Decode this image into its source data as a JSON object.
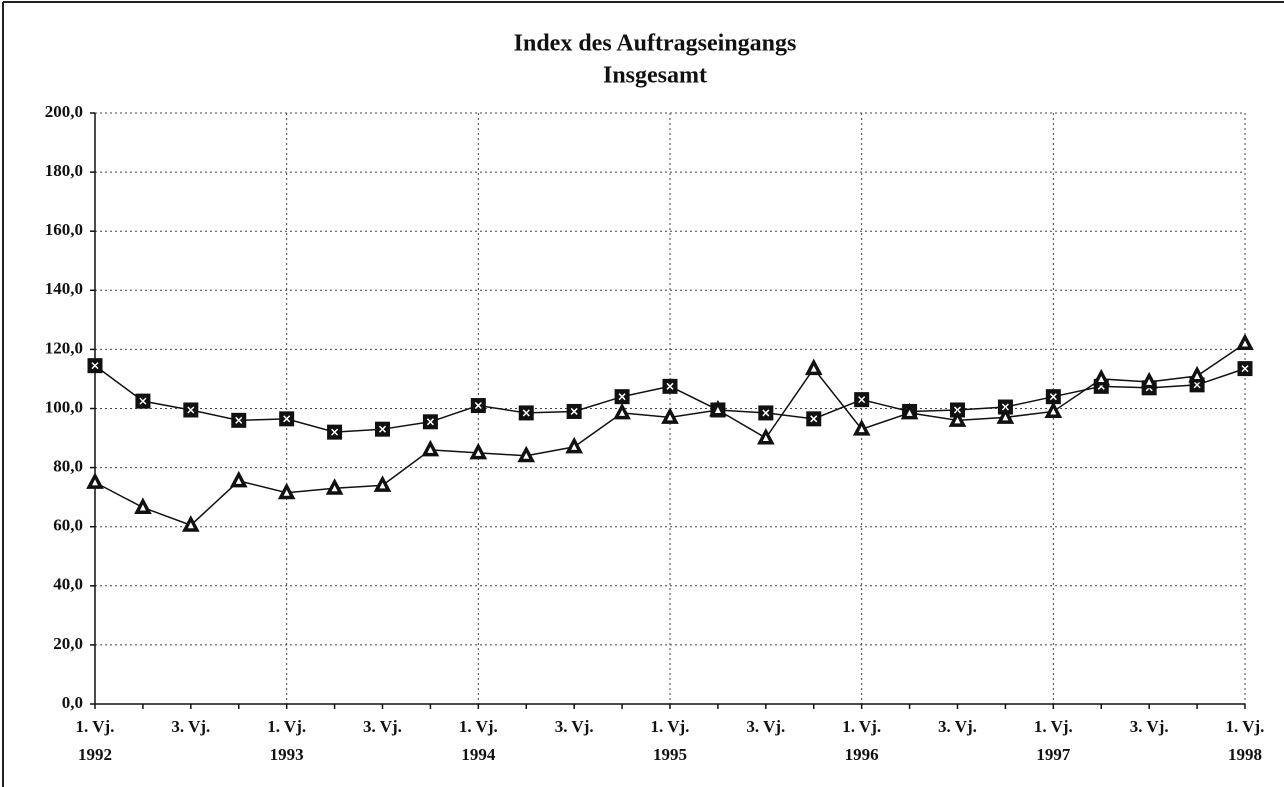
{
  "chart_data": {
    "type": "line",
    "title": "Index des Auftragseingangs",
    "subtitle": "Insgesamt",
    "categories": [
      "1. Vj.",
      null,
      "3. Vj.",
      null,
      "1. Vj.",
      null,
      "3. Vj.",
      null,
      "1. Vj.",
      null,
      "3. Vj.",
      null,
      "1. Vj.",
      null,
      "3. Vj.",
      null,
      "1. Vj.",
      null,
      "3. Vj.",
      null,
      "1. Vj.",
      null,
      "3. Vj.",
      null,
      "1. Vj."
    ],
    "category_years": [
      "1992",
      null,
      null,
      null,
      "1993",
      null,
      null,
      null,
      "1994",
      null,
      null,
      null,
      "1995",
      null,
      null,
      null,
      "1996",
      null,
      null,
      null,
      "1997",
      null,
      null,
      null,
      "1998"
    ],
    "series": [
      {
        "color": "#111111",
        "marker": "square",
        "values": [
          114.5,
          102.5,
          99.5,
          96,
          96.5,
          92,
          93,
          95.5,
          101,
          98.5,
          99,
          104,
          107.5,
          99.5,
          98.5,
          96.5,
          103,
          99,
          99.5,
          100.5,
          104,
          107.5,
          107,
          108,
          113.5
        ]
      },
      {
        "color": "#111111",
        "marker": "triangle",
        "values": [
          75,
          66.5,
          60.5,
          75.5,
          71.5,
          73,
          74,
          86,
          85,
          84,
          87,
          98.5,
          97,
          99.5,
          90,
          113.5,
          93,
          98.5,
          96,
          97,
          99,
          110,
          109,
          111,
          122
        ]
      }
    ],
    "ylim": [
      0,
      200
    ],
    "yticks": [
      {
        "value": 0,
        "label": "0,0"
      },
      {
        "value": 20,
        "label": "20,0"
      },
      {
        "value": 40,
        "label": "40,0"
      },
      {
        "value": 60,
        "label": "60,0"
      },
      {
        "value": 80,
        "label": "80,0"
      },
      {
        "value": 100,
        "label": "100,0"
      },
      {
        "value": 120,
        "label": "120,0"
      },
      {
        "value": 140,
        "label": "140,0"
      },
      {
        "value": 160,
        "label": "160,0"
      },
      {
        "value": 180,
        "label": "180,0"
      },
      {
        "value": 200,
        "label": "200,0"
      }
    ],
    "grid": true
  }
}
